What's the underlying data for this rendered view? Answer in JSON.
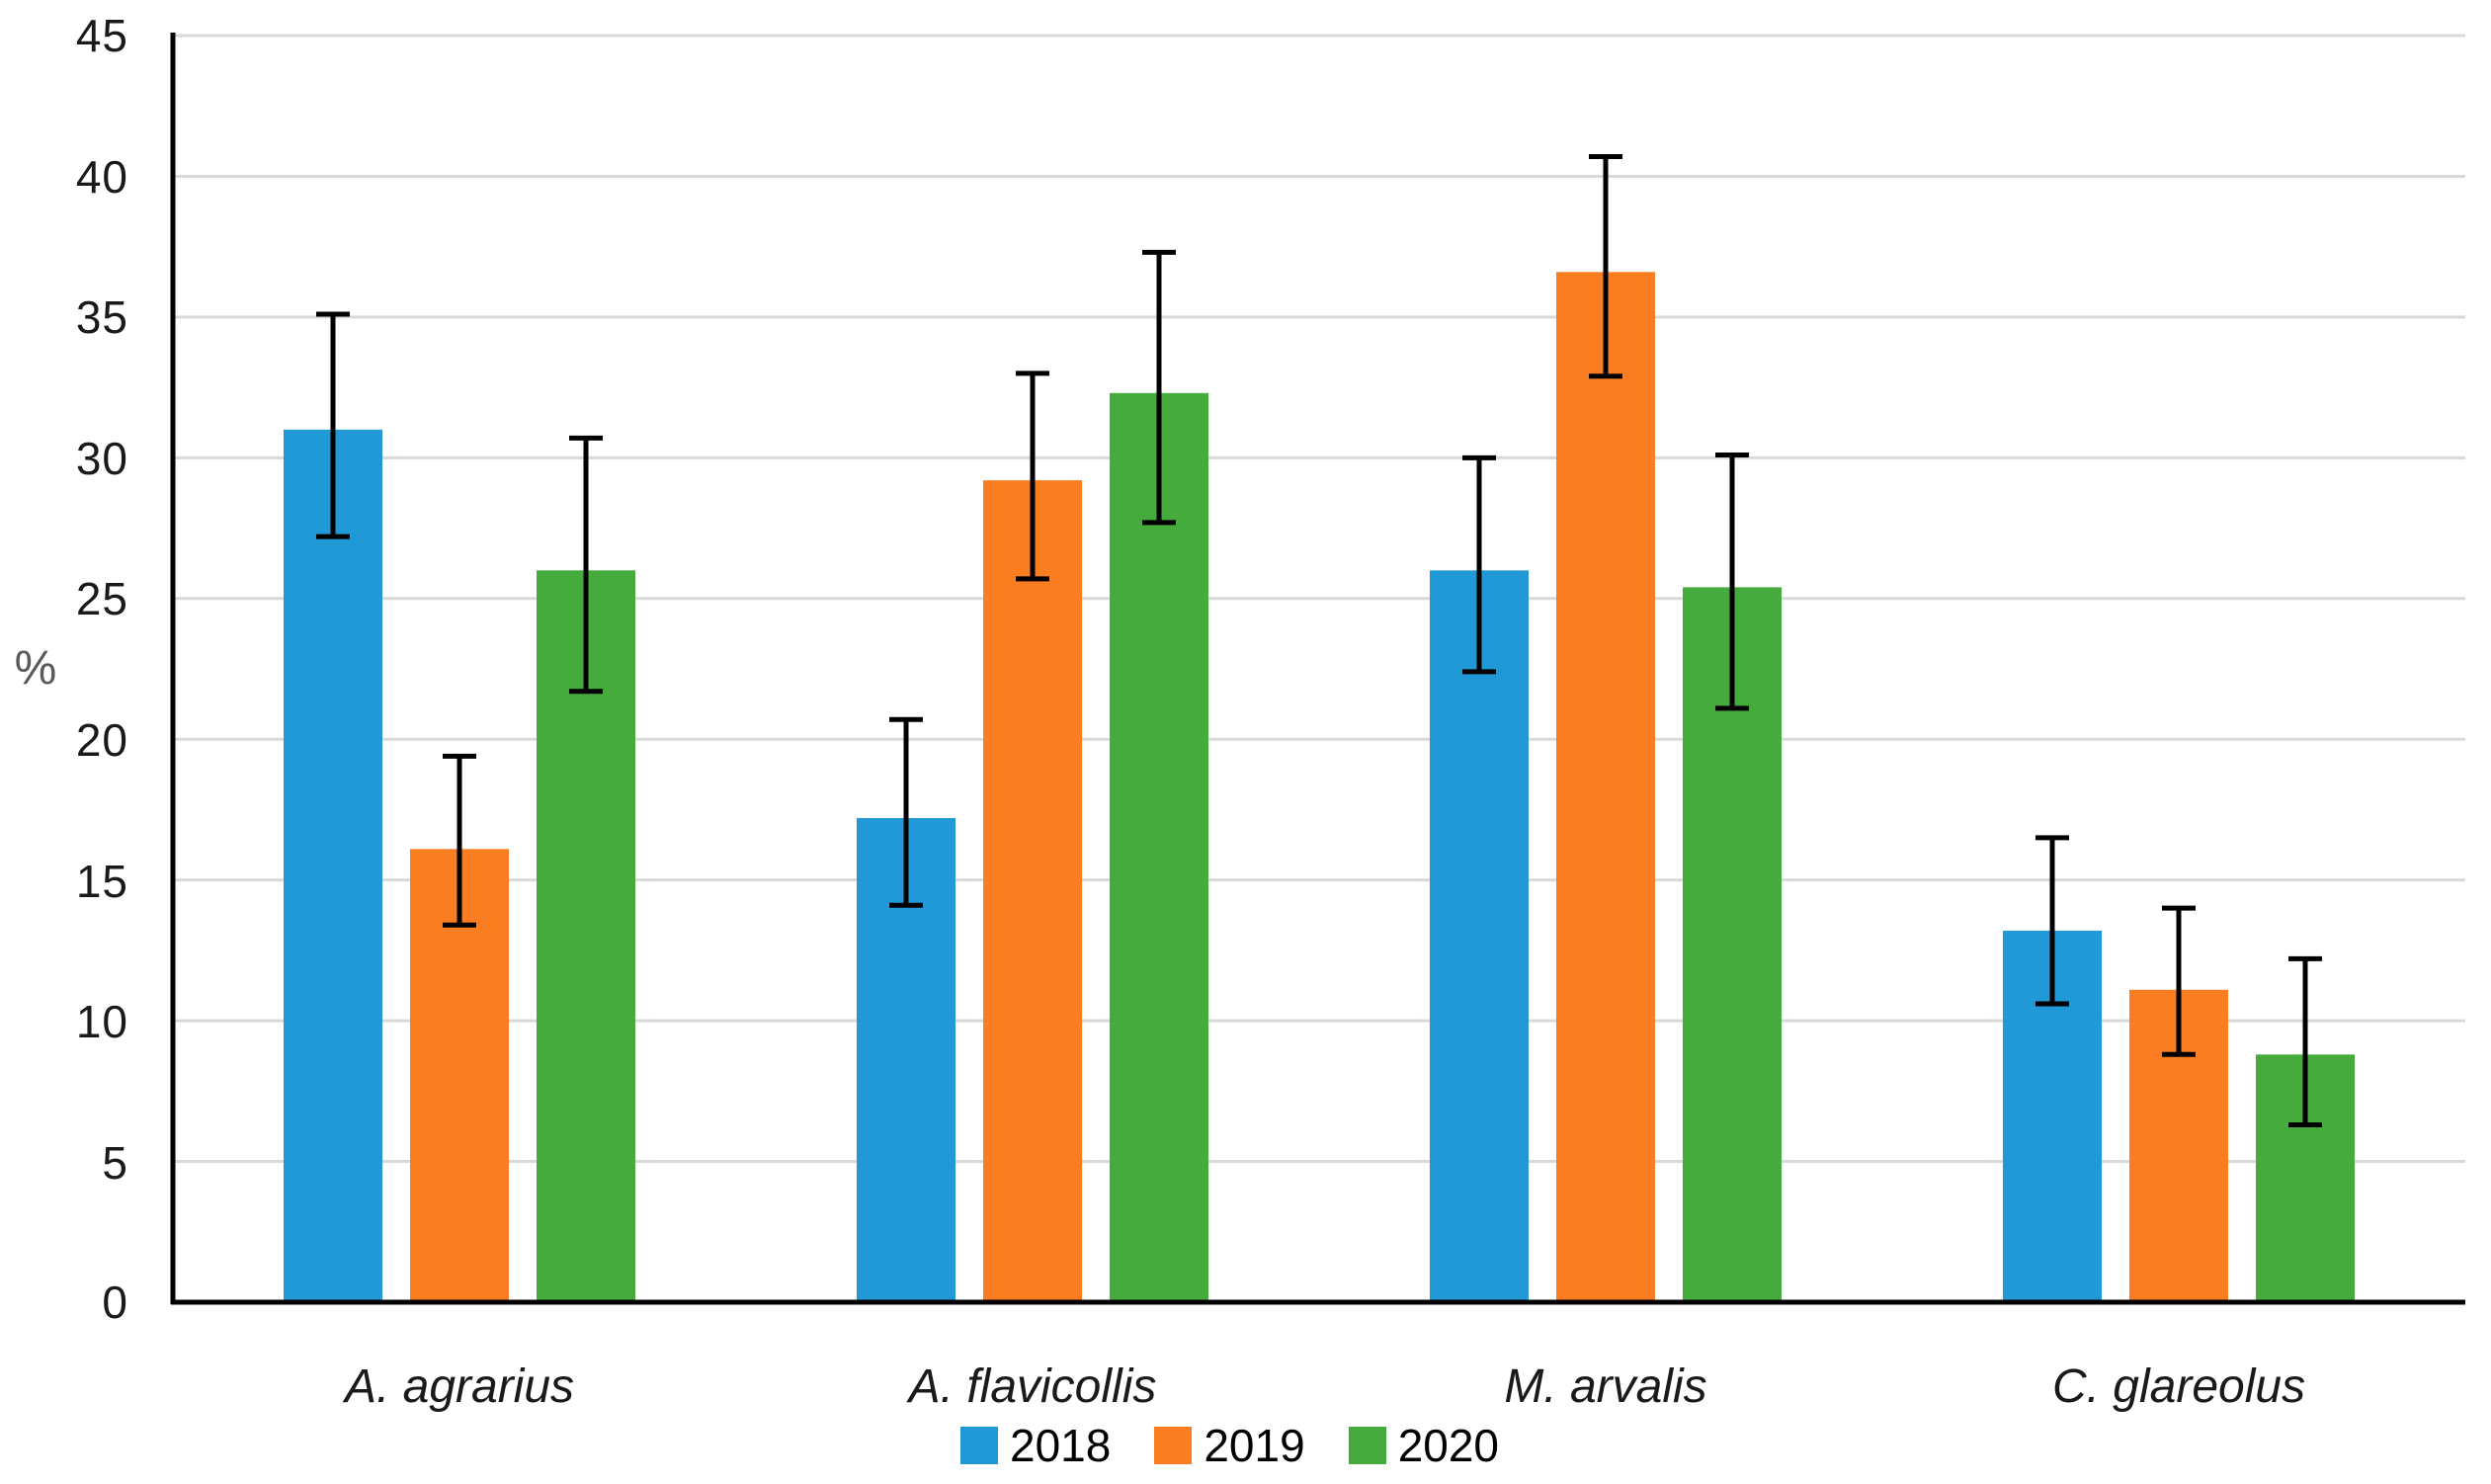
{
  "chart_data": {
    "type": "bar",
    "title": "",
    "xlabel": "",
    "ylabel": "%",
    "ylim": [
      0,
      45
    ],
    "y_tick_step": 5,
    "y_ticks": [
      45,
      40,
      35,
      30,
      25,
      20,
      15,
      10,
      5,
      0
    ],
    "grid": true,
    "legend_position": "bottom",
    "categories": [
      "A. agrarius",
      "A. flavicollis",
      "M. arvalis",
      "C. glareolus"
    ],
    "series": [
      {
        "name": "2018",
        "color": "#2199d6",
        "values": [
          31.0,
          17.2,
          26.0,
          13.2
        ],
        "error_low": [
          27.2,
          14.1,
          22.4,
          10.6
        ],
        "error_high": [
          35.1,
          20.7,
          30.0,
          16.5
        ]
      },
      {
        "name": "2019",
        "color": "#fb7d22",
        "values": [
          16.1,
          29.2,
          36.6,
          11.1
        ],
        "error_low": [
          13.4,
          25.7,
          32.9,
          8.8
        ],
        "error_high": [
          19.4,
          33.0,
          40.7,
          14.0
        ]
      },
      {
        "name": "2020",
        "color": "#45ab3c",
        "values": [
          26.0,
          32.3,
          25.4,
          8.8
        ],
        "error_low": [
          21.7,
          27.7,
          21.1,
          6.3
        ],
        "error_high": [
          30.7,
          37.3,
          30.1,
          12.2
        ]
      }
    ],
    "error_bar_color": "#000000",
    "gridline_color": "#d9d9d9",
    "axis_color": "#000000",
    "tick_label_color": "#1a1a1a"
  }
}
